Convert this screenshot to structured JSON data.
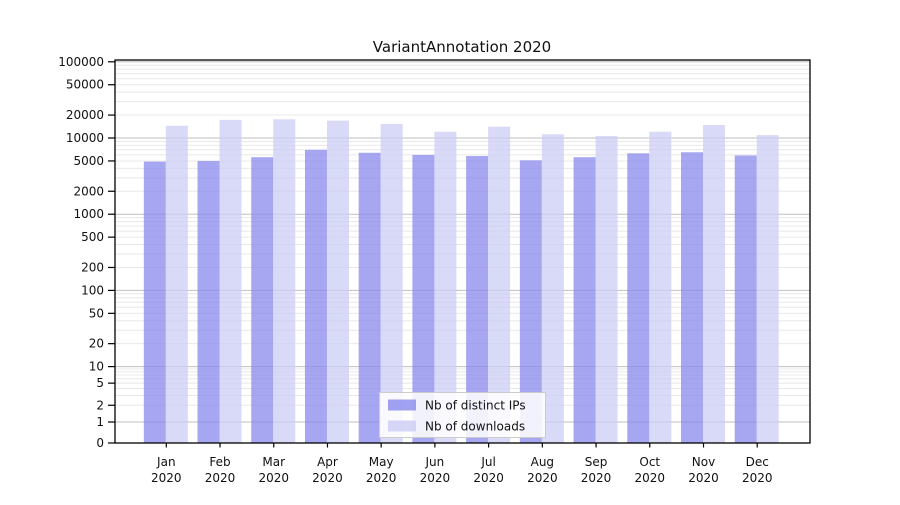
{
  "chart_data": {
    "type": "bar",
    "title": "VariantAnnotation 2020",
    "x": {
      "months": [
        "Jan",
        "Feb",
        "Mar",
        "Apr",
        "May",
        "Jun",
        "Jul",
        "Aug",
        "Sep",
        "Oct",
        "Nov",
        "Dec"
      ],
      "year": "2020"
    },
    "categories": [
      "Jan 2020",
      "Feb 2020",
      "Mar 2020",
      "Apr 2020",
      "May 2020",
      "Jun 2020",
      "Jul 2020",
      "Aug 2020",
      "Sep 2020",
      "Oct 2020",
      "Nov 2020",
      "Dec 2020"
    ],
    "series": [
      {
        "name": "Nb of distinct IPs",
        "color": "#8a8aec",
        "values": [
          4900,
          5000,
          5600,
          7000,
          6400,
          6000,
          5800,
          5100,
          5600,
          6300,
          6500,
          5900
        ]
      },
      {
        "name": "Nb of downloads",
        "color": "#ccccf5",
        "values": [
          14500,
          17300,
          17600,
          16900,
          15300,
          12100,
          14100,
          11200,
          10600,
          12100,
          14800,
          10900
        ]
      }
    ],
    "yscale": "symlog",
    "ylim": [
      0,
      100000
    ],
    "y_ticks": [
      0,
      1,
      2,
      5,
      10,
      20,
      50,
      100,
      200,
      500,
      1000,
      2000,
      5000,
      10000,
      20000,
      50000,
      100000
    ],
    "y_tick_labels": [
      "0",
      "1",
      "2",
      "5",
      "10",
      "20",
      "50",
      "100",
      "200",
      "500",
      "1000",
      "2000",
      "5000",
      "10000",
      "20000",
      "50000",
      "100000"
    ],
    "grid": "both",
    "legend_position": "lower center",
    "colors": {
      "major_grid": "#bfbfbf",
      "minor_grid": "#e8e8e8",
      "spine": "#000000",
      "background": "#ffffff"
    }
  }
}
